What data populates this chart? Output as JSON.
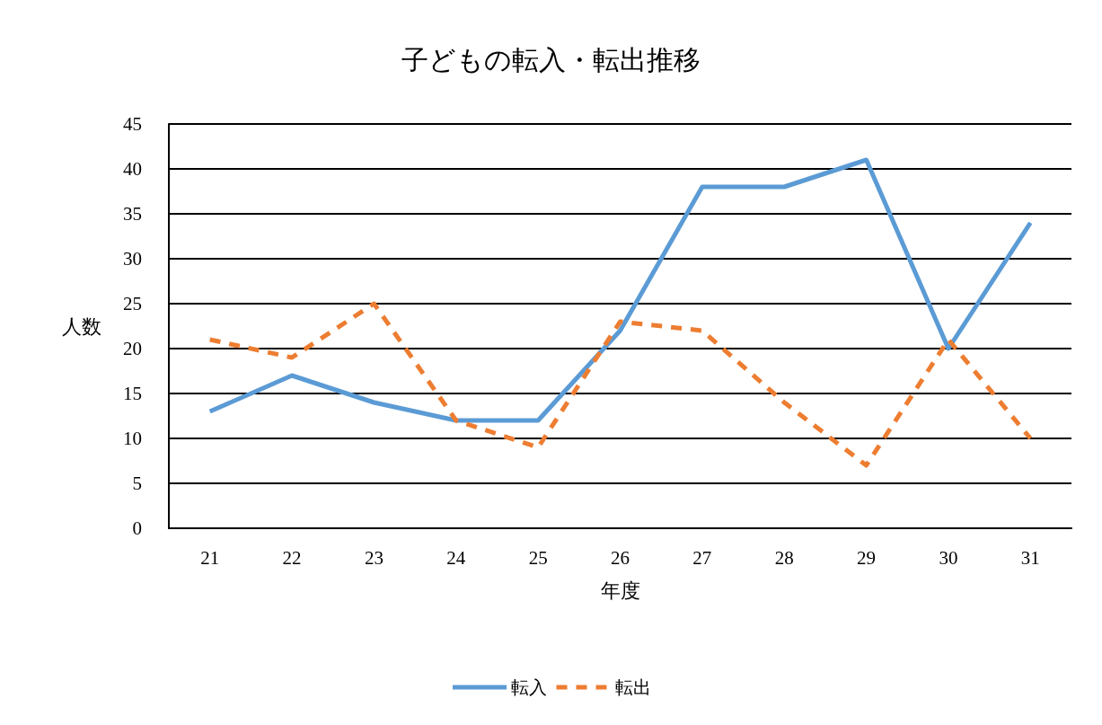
{
  "chart_data": {
    "type": "line",
    "title": "子どもの転入・転出推移",
    "xlabel": "年度",
    "ylabel": "人数",
    "categories": [
      "21",
      "22",
      "23",
      "24",
      "25",
      "26",
      "27",
      "28",
      "29",
      "30",
      "31"
    ],
    "series": [
      {
        "name": "転入",
        "color": "#5b9bd5",
        "line_style": "solid",
        "values": [
          13,
          17,
          14,
          12,
          12,
          22,
          38,
          38,
          41,
          20,
          34
        ]
      },
      {
        "name": "転出",
        "color": "#ed7d31",
        "line_style": "dashed",
        "values": [
          21,
          19,
          25,
          12,
          9,
          23,
          22,
          14,
          7,
          21,
          10
        ]
      }
    ],
    "ylim": [
      0,
      45
    ],
    "yticks": [
      0,
      5,
      10,
      15,
      20,
      25,
      30,
      35,
      40,
      45
    ],
    "grid": "y",
    "legend": "bottom",
    "marker": "none"
  }
}
